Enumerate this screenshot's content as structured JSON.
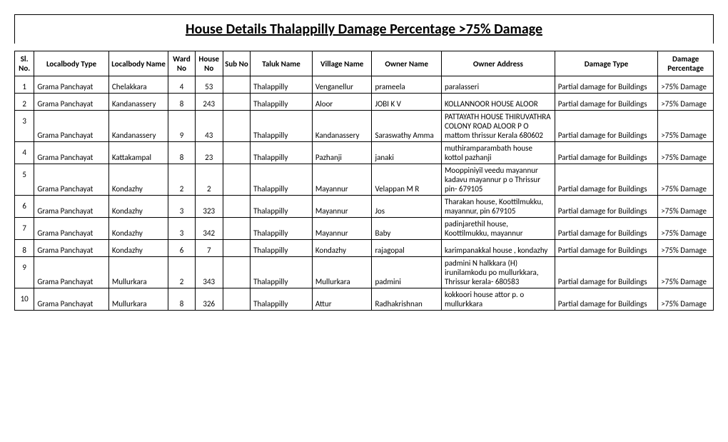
{
  "title": "House Details  Thalappilly  Damage Percentage  >75% Damage",
  "columns": [
    "Sl. No.",
    "Localbody Type",
    "Localbody Name",
    "Ward No",
    "House No",
    "Sub No",
    "Taluk Name",
    "Village Name",
    "Owner Name",
    "Owner Address",
    "Damage Type",
    "Damage Percentage"
  ],
  "rows": [
    {
      "sl": "1",
      "lbtype": "Grama Panchayat",
      "lbname": "Chelakkara",
      "ward": "4",
      "house": "53",
      "sub": "",
      "taluk": "Thalappilly",
      "village": "Venganellur",
      "owner": "prameela",
      "address": "paralasseri",
      "dtype": "Partial damage for Buildings",
      "dpct": ">75% Damage"
    },
    {
      "sl": "2",
      "lbtype": "Grama Panchayat",
      "lbname": "Kandanassery",
      "ward": "8",
      "house": "243",
      "sub": "",
      "taluk": "Thalappilly",
      "village": "Aloor",
      "owner": "JOBI K V",
      "address": "KOLLANNOOR HOUSE ALOOR",
      "dtype": "Partial damage for Buildings",
      "dpct": ">75% Damage"
    },
    {
      "sl": "3",
      "lbtype": "Grama Panchayat",
      "lbname": "Kandanassery",
      "ward": "9",
      "house": "43",
      "sub": "",
      "taluk": "Thalappilly",
      "village": "Kandanassery",
      "owner": "Saraswathy Amma",
      "address": "PATTAYATH HOUSE THIRUVATHRA COLONY  ROAD ALOOR P O  mattom thrissur Kerala 680602",
      "dtype": "Partial damage for Buildings",
      "dpct": ">75% Damage"
    },
    {
      "sl": "4",
      "lbtype": "Grama Panchayat",
      "lbname": "Kattakampal",
      "ward": "8",
      "house": "23",
      "sub": "",
      "taluk": "Thalappilly",
      "village": "Pazhanji",
      "owner": "janaki",
      "address": "muthiramparambath house kottol pazhanji",
      "dtype": "Partial damage for Buildings",
      "dpct": ">75% Damage"
    },
    {
      "sl": "5",
      "lbtype": "Grama Panchayat",
      "lbname": "Kondazhy",
      "ward": "2",
      "house": "2",
      "sub": "",
      "taluk": "Thalappilly",
      "village": "Mayannur",
      "owner": "Velappan M R",
      "address": "Mooppiniyil veedu mayannur kadavu mayannur p o Thrissur pin- 679105",
      "dtype": "Partial damage for Buildings",
      "dpct": ">75% Damage"
    },
    {
      "sl": "6",
      "lbtype": "Grama Panchayat",
      "lbname": "Kondazhy",
      "ward": "3",
      "house": "323",
      "sub": "",
      "taluk": "Thalappilly",
      "village": "Mayannur",
      "owner": "Jos",
      "address": "Tharakan house, Koottilmukku, mayannur, pin 679105",
      "dtype": "Partial damage for Buildings",
      "dpct": ">75% Damage"
    },
    {
      "sl": "7",
      "lbtype": "Grama Panchayat",
      "lbname": "Kondazhy",
      "ward": "3",
      "house": "342",
      "sub": "",
      "taluk": "Thalappilly",
      "village": "Mayannur",
      "owner": "Baby",
      "address": "padinjarethil house, Koottilmukku, mayannur",
      "dtype": "Partial damage for Buildings",
      "dpct": ">75% Damage"
    },
    {
      "sl": "8",
      "lbtype": "Grama Panchayat",
      "lbname": "Kondazhy",
      "ward": "6",
      "house": "7",
      "sub": "",
      "taluk": "Thalappilly",
      "village": "Kondazhy",
      "owner": "rajagopal",
      "address": "karimpanakkal house , kondazhy",
      "dtype": "Partial damage for Buildings",
      "dpct": ">75% Damage"
    },
    {
      "sl": "9",
      "lbtype": "Grama Panchayat",
      "lbname": "Mullurkara",
      "ward": "2",
      "house": "343",
      "sub": "",
      "taluk": "Thalappilly",
      "village": "Mullurkara",
      "owner": "padmini",
      "address": "padmini N halkkara (H) irunilamkodu po mullurkkara, Thrissur kerala- 680583",
      "dtype": "Partial damage for Buildings",
      "dpct": ">75% Damage"
    },
    {
      "sl": "10",
      "lbtype": "Grama Panchayat",
      "lbname": "Mullurkara",
      "ward": "8",
      "house": "326",
      "sub": "",
      "taluk": "Thalappilly",
      "village": "Attur",
      "owner": "Radhakrishnan",
      "address": "kokkoori house attor p. o mullurkkara",
      "dtype": "Partial damage for Buildings",
      "dpct": ">75% Damage"
    }
  ]
}
